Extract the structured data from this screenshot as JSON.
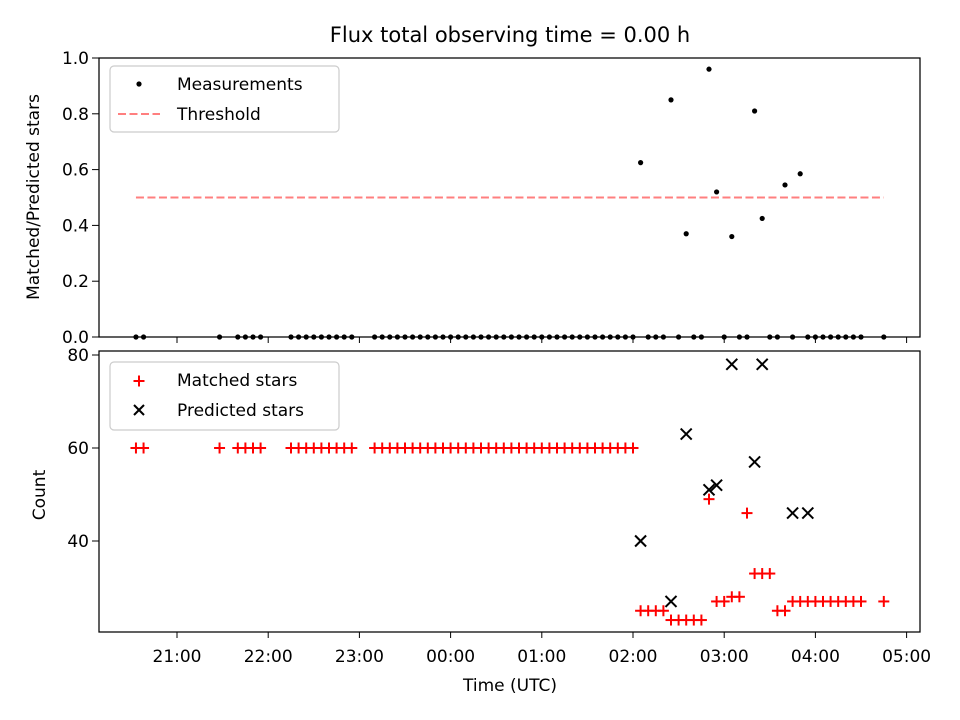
{
  "chart_data": [
    {
      "type": "scatter",
      "title": "Flux total observing time = 0.00 h",
      "xlabel": "",
      "ylabel": "Matched/Predicted stars",
      "ylim": [
        0,
        1.0
      ],
      "yticks": [
        "0.0",
        "0.2",
        "0.4",
        "0.6",
        "0.8",
        "1.0"
      ],
      "grid": false,
      "legend_position": "upper-left",
      "series": [
        {
          "name": "Measurements",
          "marker": "dot",
          "color": "#000000",
          "x": [
            "20:33",
            "20:38",
            "21:28",
            "21:40",
            "21:45",
            "21:50",
            "21:55",
            "22:15",
            "22:20",
            "22:25",
            "22:30",
            "22:35",
            "22:40",
            "22:45",
            "22:50",
            "22:55",
            "23:10",
            "23:15",
            "23:20",
            "23:25",
            "23:30",
            "23:35",
            "23:40",
            "23:45",
            "23:50",
            "23:55",
            "00:00",
            "00:05",
            "00:10",
            "00:15",
            "00:20",
            "00:25",
            "00:30",
            "00:35",
            "00:40",
            "00:45",
            "00:50",
            "00:55",
            "01:00",
            "01:05",
            "01:10",
            "01:15",
            "01:20",
            "01:25",
            "01:30",
            "01:35",
            "01:40",
            "01:45",
            "01:50",
            "01:55",
            "02:00",
            "02:05",
            "02:10",
            "02:15",
            "02:20",
            "02:25",
            "02:30",
            "02:35",
            "02:40",
            "02:45",
            "02:50",
            "02:55",
            "03:00",
            "03:05",
            "03:10",
            "03:15",
            "03:20",
            "03:25",
            "03:30",
            "03:35",
            "03:40",
            "03:45",
            "03:50",
            "03:55",
            "04:00",
            "04:05",
            "04:10",
            "04:15",
            "04:20",
            "04:25",
            "04:30",
            "04:45"
          ],
          "y": [
            0,
            0,
            0,
            0,
            0,
            0,
            0,
            0,
            0,
            0,
            0,
            0,
            0,
            0,
            0,
            0,
            0,
            0,
            0,
            0,
            0,
            0,
            0,
            0,
            0,
            0,
            0,
            0,
            0,
            0,
            0,
            0,
            0,
            0,
            0,
            0,
            0,
            0,
            0,
            0,
            0,
            0,
            0,
            0,
            0,
            0,
            0,
            0,
            0,
            0,
            0,
            0.625,
            0,
            0,
            0,
            0.85,
            0,
            0.37,
            0,
            0,
            0.96,
            0.52,
            0,
            0.36,
            0,
            0,
            0.81,
            0.425,
            0,
            0,
            0.545,
            0,
            0.585,
            0,
            0,
            0,
            0,
            0,
            0,
            0,
            0,
            0
          ]
        },
        {
          "name": "Threshold",
          "style": "dashed",
          "color": "#ff7f7f",
          "x": [
            "20:33",
            "04:45"
          ],
          "y": [
            0.5,
            0.5
          ]
        }
      ]
    },
    {
      "type": "scatter",
      "title": "",
      "xlabel": "Time (UTC)",
      "ylabel": "Count",
      "xticks": [
        "21:00",
        "22:00",
        "23:00",
        "00:00",
        "01:00",
        "02:00",
        "03:00",
        "04:00",
        "05:00"
      ],
      "yticks": [
        "40",
        "60",
        "80"
      ],
      "grid": false,
      "legend_position": "upper-left",
      "series": [
        {
          "name": "Matched stars",
          "marker": "plus",
          "color": "#ff0000",
          "x": [
            "20:33",
            "20:38",
            "21:28",
            "21:40",
            "21:45",
            "21:50",
            "21:55",
            "22:15",
            "22:20",
            "22:25",
            "22:30",
            "22:35",
            "22:40",
            "22:45",
            "22:50",
            "22:55",
            "23:10",
            "23:15",
            "23:20",
            "23:25",
            "23:30",
            "23:35",
            "23:40",
            "23:45",
            "23:50",
            "23:55",
            "00:00",
            "00:05",
            "00:10",
            "00:15",
            "00:20",
            "00:25",
            "00:30",
            "00:35",
            "00:40",
            "00:45",
            "00:50",
            "00:55",
            "01:00",
            "01:05",
            "01:10",
            "01:15",
            "01:20",
            "01:25",
            "01:30",
            "01:35",
            "01:40",
            "01:45",
            "01:50",
            "01:55",
            "02:00",
            "02:05",
            "02:10",
            "02:15",
            "02:20",
            "02:25",
            "02:30",
            "02:35",
            "02:40",
            "02:45",
            "02:50",
            "02:55",
            "03:00",
            "03:05",
            "03:10",
            "03:15",
            "03:20",
            "03:25",
            "03:30",
            "03:35",
            "03:40",
            "03:45",
            "03:50",
            "03:55",
            "04:00",
            "04:05",
            "04:10",
            "04:15",
            "04:20",
            "04:25",
            "04:30",
            "04:45"
          ],
          "y": [
            60,
            60,
            60,
            60,
            60,
            60,
            60,
            60,
            60,
            60,
            60,
            60,
            60,
            60,
            60,
            60,
            60,
            60,
            60,
            60,
            60,
            60,
            60,
            60,
            60,
            60,
            60,
            60,
            60,
            60,
            60,
            60,
            60,
            60,
            60,
            60,
            60,
            60,
            60,
            60,
            60,
            60,
            60,
            60,
            60,
            60,
            60,
            60,
            60,
            60,
            60,
            25,
            25,
            25,
            25,
            23,
            23,
            23,
            23,
            23,
            49,
            27,
            27,
            28,
            28,
            46,
            33,
            33,
            33,
            25,
            25,
            27,
            27,
            27,
            27,
            27,
            27,
            27,
            27,
            27,
            27,
            27
          ]
        },
        {
          "name": "Predicted stars",
          "marker": "x",
          "color": "#000000",
          "x": [
            "02:05",
            "02:25",
            "02:35",
            "02:50",
            "02:55",
            "03:05",
            "03:20",
            "03:25",
            "03:45",
            "03:55"
          ],
          "y": [
            40,
            27,
            63,
            51,
            52,
            78,
            57,
            78,
            46,
            46
          ]
        }
      ]
    }
  ]
}
